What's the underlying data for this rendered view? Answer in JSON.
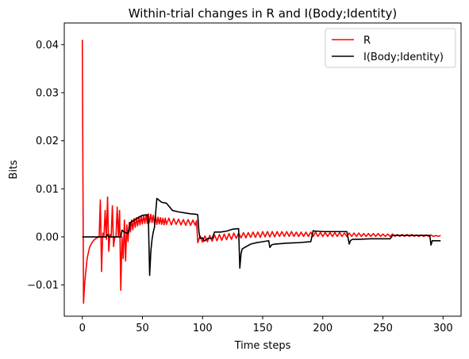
{
  "chart_data": {
    "type": "line",
    "title": "Within-trial changes in R and I(Body;Identity)",
    "xlabel": "Time steps",
    "ylabel": "Bits",
    "xlim": [
      -15,
      315
    ],
    "ylim": [
      -0.0165,
      0.0445
    ],
    "xticks": [
      0,
      50,
      100,
      150,
      200,
      250,
      300
    ],
    "xtick_labels": [
      "0",
      "50",
      "100",
      "150",
      "200",
      "250",
      "300"
    ],
    "yticks": [
      -0.01,
      0.0,
      0.01,
      0.02,
      0.03,
      0.04
    ],
    "ytick_labels": [
      "−0.01",
      "0.00",
      "0.01",
      "0.02",
      "0.03",
      "0.04"
    ],
    "grid": false,
    "legend_position": "upper right",
    "series": [
      {
        "name": "R",
        "color": "#ff0000",
        "x": [
          0,
          1,
          2,
          4,
          6,
          8,
          10,
          12,
          14,
          15,
          16,
          17,
          18,
          19,
          20,
          21,
          22,
          23,
          24,
          25,
          26,
          27,
          28,
          29,
          30,
          31,
          32,
          33,
          34,
          35,
          36,
          37,
          38,
          39,
          40,
          41,
          42,
          43,
          44,
          45,
          46,
          47,
          48,
          49,
          50,
          51,
          52,
          53,
          54,
          55,
          56,
          57,
          58,
          59,
          60,
          61,
          62,
          63,
          64,
          65,
          66,
          67,
          68,
          69,
          70,
          72,
          74,
          76,
          78,
          80,
          82,
          84,
          86,
          88,
          90,
          92,
          94,
          95,
          96,
          98,
          100,
          102,
          104,
          106,
          108,
          110,
          112,
          114,
          116,
          118,
          120,
          122,
          124,
          126,
          128,
          130,
          132,
          134,
          136,
          138,
          140,
          142,
          144,
          146,
          148,
          150,
          152,
          154,
          156,
          158,
          160,
          162,
          164,
          166,
          168,
          170,
          172,
          174,
          176,
          178,
          180,
          182,
          184,
          186,
          188,
          190,
          192,
          194,
          196,
          198,
          200,
          202,
          204,
          206,
          208,
          210,
          212,
          214,
          216,
          218,
          220,
          222,
          224,
          226,
          228,
          230,
          232,
          234,
          236,
          238,
          240,
          242,
          244,
          246,
          248,
          250,
          252,
          254,
          256,
          258,
          260,
          262,
          264,
          266,
          268,
          270,
          272,
          274,
          276,
          278,
          280,
          282,
          284,
          286,
          288,
          290,
          292,
          294,
          296,
          298
        ],
        "y": [
          0.041,
          -0.0138,
          -0.0095,
          -0.0045,
          -0.0022,
          -0.0012,
          -0.0006,
          -0.0002,
          0.0,
          0.0077,
          -0.0072,
          0.0008,
          0.0,
          0.0055,
          -0.0005,
          0.0083,
          -0.003,
          0.0005,
          0.0,
          0.0065,
          -0.002,
          0.0,
          0.0,
          0.0062,
          0.0,
          0.0055,
          -0.0111,
          0.0,
          -0.0045,
          0.0035,
          -0.005,
          0.0025,
          -0.001,
          0.003,
          0.001,
          0.0035,
          0.0015,
          0.0038,
          0.002,
          0.004,
          0.0023,
          0.0042,
          0.0025,
          0.0043,
          0.0027,
          0.0045,
          0.0028,
          0.0046,
          0.0028,
          0.0048,
          0.003,
          0.0047,
          0.003,
          0.0045,
          0.0028,
          0.0042,
          0.0026,
          0.0041,
          0.0027,
          0.004,
          0.0026,
          0.0039,
          0.0025,
          0.0039,
          0.0026,
          0.0039,
          0.0025,
          0.0038,
          0.0026,
          0.0037,
          0.0025,
          0.0036,
          0.0024,
          0.0036,
          0.0024,
          0.0035,
          0.0024,
          0.0034,
          -0.0012,
          0.0002,
          -0.0011,
          0.0002,
          -0.001,
          0.0003,
          -0.0009,
          0.0004,
          -0.0008,
          0.0005,
          -0.0007,
          0.0006,
          -0.0006,
          0.0007,
          -0.0005,
          0.0008,
          -0.0003,
          0.0008,
          -0.0002,
          0.0009,
          -0.0002,
          0.0009,
          -0.0001,
          0.001,
          -0.0001,
          0.001,
          -0.0001,
          0.0011,
          0.0,
          0.0011,
          0.0,
          0.0011,
          0.0,
          0.0011,
          0.0001,
          0.0011,
          0.0001,
          0.0011,
          0.0001,
          0.0011,
          0.0001,
          0.001,
          0.0001,
          0.001,
          0.0001,
          0.001,
          0.0001,
          0.001,
          0.0001,
          0.001,
          0.0001,
          0.0009,
          0.0001,
          0.0009,
          0.0001,
          0.0009,
          0.0001,
          0.0009,
          0.0001,
          0.0009,
          0.0001,
          0.0008,
          0.0001,
          0.0008,
          0.0001,
          0.0008,
          0.0001,
          0.0008,
          0.0001,
          0.0007,
          0.0001,
          0.0007,
          0.0001,
          0.0007,
          0.0001,
          0.0007,
          0.0001,
          0.0006,
          0.0001,
          0.0006,
          0.0001,
          0.0006,
          0.0001,
          0.0005,
          0.0001,
          0.0005,
          0.0001,
          0.0005,
          0.0001,
          0.0005,
          0.0001,
          0.0004,
          0.0001,
          0.0004,
          0.0001,
          0.0004,
          0.0001,
          0.0004,
          0.0001,
          0.0003,
          0.0001,
          0.0003
        ]
      },
      {
        "name": "I(Body;Identity)",
        "color": "#000000",
        "x": [
          0,
          10,
          20,
          21,
          22,
          25,
          28,
          30,
          32,
          33,
          34,
          35,
          36,
          37,
          38,
          40,
          45,
          50,
          54,
          55,
          56,
          57,
          58,
          59,
          60,
          62,
          64,
          65,
          66,
          70,
          75,
          80,
          85,
          90,
          95,
          96,
          97,
          98,
          100,
          101,
          102,
          103,
          105,
          108,
          110,
          112,
          115,
          120,
          125,
          130,
          131,
          132,
          133,
          135,
          140,
          145,
          150,
          155,
          156,
          157,
          158,
          160,
          170,
          180,
          190,
          192,
          193,
          195,
          200,
          210,
          220,
          222,
          223,
          224,
          225,
          230,
          240,
          250,
          256,
          258,
          259,
          260,
          270,
          280,
          285,
          289,
          290,
          291,
          295,
          298
        ],
        "y": [
          0.0,
          0.0,
          0.0,
          0.0005,
          0.0,
          0.0,
          0.0,
          0.0,
          0.0,
          0.0014,
          0.0012,
          0.001,
          0.0009,
          0.0008,
          0.0007,
          0.003,
          0.0038,
          0.0045,
          0.0046,
          0.0032,
          -0.008,
          -0.003,
          -0.0005,
          0.001,
          0.002,
          0.008,
          0.0076,
          0.0074,
          0.0072,
          0.007,
          0.0055,
          0.0052,
          0.005,
          0.0048,
          0.0047,
          0.0046,
          0.001,
          -0.0003,
          -0.0002,
          -0.0008,
          -0.0008,
          -0.0005,
          -0.0003,
          -0.0003,
          0.001,
          0.001,
          0.001,
          0.0012,
          0.0016,
          0.0017,
          -0.0065,
          -0.0035,
          -0.0025,
          -0.0022,
          -0.0015,
          -0.0012,
          -0.001,
          -0.0008,
          -0.0022,
          -0.0018,
          -0.0016,
          -0.0015,
          -0.0013,
          -0.0012,
          -0.001,
          0.0013,
          0.0012,
          0.0012,
          0.0011,
          0.0011,
          0.0011,
          -0.0015,
          -0.0008,
          -0.0006,
          -0.0005,
          -0.0005,
          -0.0004,
          -0.0004,
          -0.0004,
          0.0003,
          0.0003,
          0.0003,
          0.0003,
          0.0003,
          0.0003,
          0.0003,
          -0.0017,
          -0.0008,
          -0.0008,
          -0.0008
        ]
      }
    ]
  }
}
